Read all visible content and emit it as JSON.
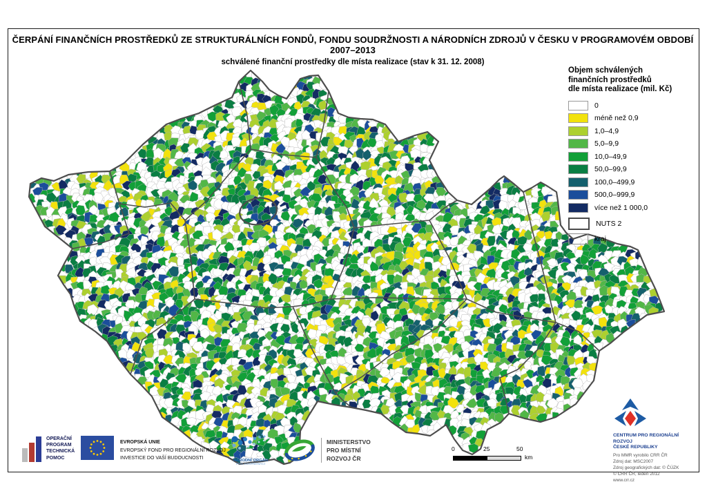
{
  "title": {
    "main": "ČERPÁNÍ FINANČNÍCH PROSTŘEDKŮ ZE STRUKTURÁLNÍCH FONDŮ, FONDU SOUDRŽNOSTI A NÁRODNÍCH ZDROJŮ V ČESKU V PROGRAMOVÉM OBDOBÍ 2007–2013",
    "sub": "schválené finanční prostředky dle místa realizace (stav k 31. 12. 2008)"
  },
  "legend": {
    "title": "Objem schválených\nfinančních prostředků\ndle místa realizace (mil. Kč)",
    "items": [
      {
        "key": "zero",
        "color": "#FFFFFF",
        "label": "0"
      },
      {
        "key": "lt09",
        "color": "#F2E20D",
        "label": "méně než 0,9"
      },
      {
        "key": "c1",
        "color": "#ADD02F",
        "label": "1,0–4,9"
      },
      {
        "key": "c5",
        "color": "#52B747",
        "label": "5,0–9,9"
      },
      {
        "key": "c10",
        "color": "#12A038",
        "label": "10,0–49,9"
      },
      {
        "key": "c50",
        "color": "#0A7E43",
        "label": "50,0–99,9"
      },
      {
        "key": "c100",
        "color": "#15606D",
        "label": "100,0–499,9"
      },
      {
        "key": "c500",
        "color": "#1B4E9B",
        "label": "500,0–999,9"
      },
      {
        "key": "gt1000",
        "color": "#132B63",
        "label": "více než 1 000,0"
      }
    ],
    "nuts2_label": "NUTS 2",
    "kraj_label": "kraj"
  },
  "map": {
    "municipality_border_color": "#B3B3B3",
    "region_border_color": "#4D4D4D",
    "country_border_color": "#4D4D4D"
  },
  "scalebar": {
    "ticks": [
      "0",
      "25",
      "50"
    ],
    "unit": "km"
  },
  "footer": {
    "optp": {
      "lines": [
        "OPERAČNÍ",
        "PROGRAM",
        "TECHNICKÁ",
        "POMOC"
      ]
    },
    "eu": {
      "line1": "EVROPSKÁ UNIE",
      "line2": "EVROPSKÝ FOND PRO REGIONÁLNÍ ROZVOJ",
      "line3": "INVESTICE DO VAŠÍ BUDOUCNOSTI",
      "flag_blue": "#2B4DA0",
      "star_yellow": "#FFCC00"
    },
    "nok": {
      "name": "NÁRODNÍ ORGÁN",
      "sub": "PRO KOORDINACI",
      "blue": "#1565AD"
    },
    "mmr": {
      "lines": [
        "MINISTERSTVO",
        "PRO MÍSTNÍ",
        "ROZVOJ ČR"
      ],
      "green": "#36A635",
      "blue": "#1C4E9B"
    },
    "crr": {
      "org_line1": "CENTRUM PRO REGIONÁLNÍ ROZVOJ",
      "org_line2": "ČESKÉ REPUBLIKY",
      "credits": [
        "Pro MMR vyrobilo CRR ČR",
        "Zdroj dat: MSC2007",
        "Zdroj geografických dat: © ČÚZK",
        "© CRR ČR, leden 2012",
        "www.crr.cz"
      ],
      "blue": "#1D5BA4",
      "red": "#E03127"
    },
    "optp_colors": {
      "gray": "#BBBBBB",
      "red": "#B23B31",
      "blue": "#2B3D96"
    }
  }
}
